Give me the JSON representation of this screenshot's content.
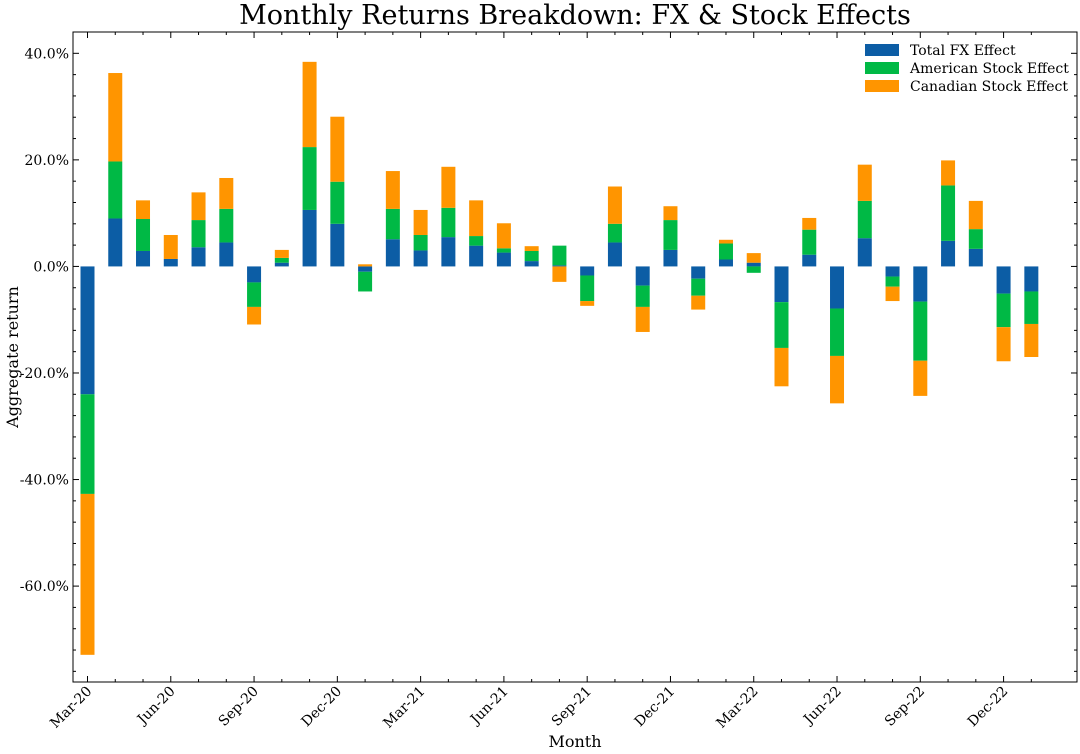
{
  "chart_data": {
    "type": "bar",
    "stacked": true,
    "title": "Monthly Returns Breakdown: FX & Stock Effects",
    "xlabel": "Month",
    "ylabel": "Aggregate return",
    "ylim": [
      -0.78,
      0.44
    ],
    "yticks": [
      -0.6,
      -0.4,
      -0.2,
      0.0,
      0.2,
      0.4
    ],
    "ytick_labels": [
      "-60.0%",
      "-40.0%",
      "-20.0%",
      "0.0%",
      "20.0%",
      "40.0%"
    ],
    "categories": [
      "Mar-20",
      "Apr-20",
      "May-20",
      "Jun-20",
      "Jul-20",
      "Aug-20",
      "Sep-20",
      "Oct-20",
      "Nov-20",
      "Dec-20",
      "Jan-21",
      "Feb-21",
      "Mar-21",
      "Apr-21",
      "May-21",
      "Jun-21",
      "Jul-21",
      "Aug-21",
      "Sep-21",
      "Oct-21",
      "Nov-21",
      "Dec-21",
      "Jan-22",
      "Feb-22",
      "Mar-22",
      "Apr-22",
      "May-22",
      "Jun-22",
      "Jul-22",
      "Aug-22",
      "Sep-22",
      "Oct-22",
      "Nov-22",
      "Dec-22",
      "Jan-23"
    ],
    "xtick_labels": [
      "Mar-20",
      "",
      "",
      "Jun-20",
      "",
      "",
      "Sep-20",
      "",
      "",
      "Dec-20",
      "",
      "",
      "Mar-21",
      "",
      "",
      "Jun-21",
      "",
      "",
      "Sep-21",
      "",
      "",
      "Dec-21",
      "",
      "",
      "Mar-22",
      "",
      "",
      "Jun-22",
      "",
      "",
      "Sep-22",
      "",
      "",
      "Dec-22",
      ""
    ],
    "series": [
      {
        "name": "Total FX Effect",
        "color": "#0C5DA5",
        "values": [
          -0.24,
          0.09,
          0.029,
          0.014,
          0.036,
          0.045,
          -0.03,
          0.007,
          0.106,
          0.08,
          -0.01,
          0.051,
          0.03,
          0.055,
          0.039,
          0.026,
          0.01,
          0.002,
          -0.017,
          0.045,
          -0.036,
          0.031,
          -0.023,
          0.013,
          0.007,
          -0.067,
          0.022,
          -0.079,
          0.053,
          -0.019,
          -0.066,
          0.048,
          0.033,
          -0.051,
          -0.047
        ]
      },
      {
        "name": "American Stock Effect",
        "color": "#00B945",
        "values": [
          -0.187,
          0.107,
          0.06,
          0.0,
          0.051,
          0.063,
          -0.046,
          0.009,
          0.118,
          0.079,
          -0.037,
          0.057,
          0.029,
          0.055,
          0.018,
          0.008,
          0.019,
          0.037,
          -0.048,
          0.035,
          -0.04,
          0.056,
          -0.032,
          0.03,
          -0.012,
          -0.086,
          0.047,
          -0.089,
          0.07,
          -0.019,
          -0.111,
          0.104,
          0.037,
          -0.063,
          -0.061
        ]
      },
      {
        "name": "Canadian Stock Effect",
        "color": "#FF9500",
        "values": [
          -0.302,
          0.166,
          0.035,
          0.045,
          0.052,
          0.058,
          -0.033,
          0.015,
          0.16,
          0.122,
          0.004,
          0.071,
          0.047,
          0.077,
          0.067,
          0.047,
          0.009,
          -0.029,
          -0.009,
          0.07,
          -0.047,
          0.026,
          -0.026,
          0.007,
          0.018,
          -0.072,
          0.022,
          -0.089,
          0.068,
          -0.027,
          -0.066,
          0.047,
          0.053,
          -0.064,
          -0.062
        ]
      }
    ],
    "legend_position": "top-right",
    "grid": false
  }
}
